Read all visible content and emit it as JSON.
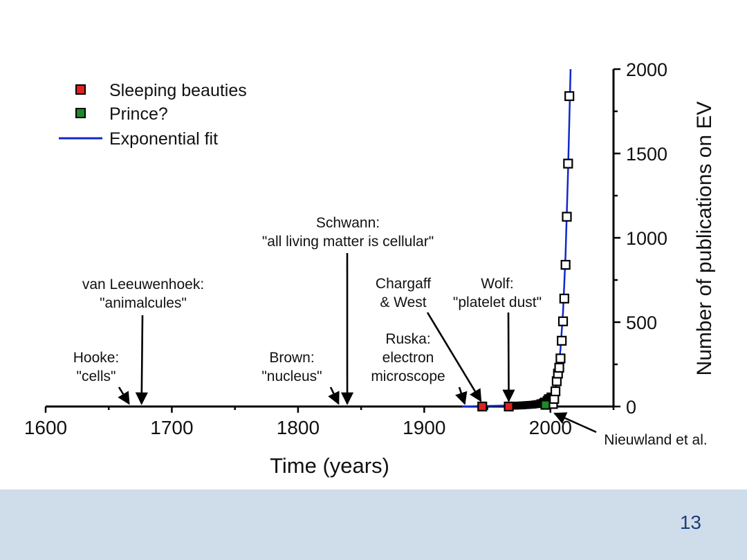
{
  "chart_data": {
    "type": "scatter",
    "xlabel": "Time (years)",
    "ylabel": "Number of publications on EV",
    "xlim": [
      1600,
      2050
    ],
    "ylim": [
      0,
      2000
    ],
    "x_ticks": [
      1600,
      1700,
      1800,
      1900,
      2000
    ],
    "y_ticks": [
      0,
      500,
      1000,
      1500,
      2000
    ],
    "legend": {
      "placement": "top-left",
      "items": [
        {
          "label": "Sleeping beauties",
          "marker": "square",
          "color": "#e02020"
        },
        {
          "label": "Prince?",
          "marker": "square",
          "color": "#1a8a2a"
        },
        {
          "label": "Exponential fit",
          "marker": "line",
          "color": "#1028c8"
        }
      ]
    },
    "series": [
      {
        "name": "Sleeping beauties",
        "color": "#e02020",
        "points": [
          {
            "x": 1946,
            "y": 0
          },
          {
            "x": 1967,
            "y": 0
          }
        ]
      },
      {
        "name": "Prince?",
        "color": "#1a8a2a",
        "points": [
          {
            "x": 1996,
            "y": 10
          }
        ]
      },
      {
        "name": "Publications",
        "color": "#000000",
        "points": [
          {
            "x": 1970,
            "y": 5
          },
          {
            "x": 1972,
            "y": 5
          },
          {
            "x": 1974,
            "y": 6
          },
          {
            "x": 1976,
            "y": 6
          },
          {
            "x": 1978,
            "y": 7
          },
          {
            "x": 1980,
            "y": 8
          },
          {
            "x": 1982,
            "y": 9
          },
          {
            "x": 1984,
            "y": 10
          },
          {
            "x": 1986,
            "y": 11
          },
          {
            "x": 1988,
            "y": 13
          },
          {
            "x": 1990,
            "y": 15
          },
          {
            "x": 1992,
            "y": 20
          },
          {
            "x": 1994,
            "y": 25
          },
          {
            "x": 1995,
            "y": 30
          },
          {
            "x": 1997,
            "y": 40
          },
          {
            "x": 1998,
            "y": 50
          },
          {
            "x": 2000,
            "y": 60
          },
          {
            "x": 2002,
            "y": 15
          },
          {
            "x": 2003,
            "y": 45
          },
          {
            "x": 2004,
            "y": 90
          },
          {
            "x": 2005,
            "y": 150
          },
          {
            "x": 2006,
            "y": 195
          },
          {
            "x": 2007,
            "y": 230
          },
          {
            "x": 2008,
            "y": 285
          },
          {
            "x": 2009,
            "y": 390
          },
          {
            "x": 2010,
            "y": 505
          },
          {
            "x": 2011,
            "y": 640
          },
          {
            "x": 2012,
            "y": 840
          },
          {
            "x": 2013,
            "y": 1125
          },
          {
            "x": 2014,
            "y": 1440
          },
          {
            "x": 2015,
            "y": 1840
          }
        ]
      }
    ],
    "fit": {
      "name": "Exponential fit",
      "color": "#1028c8",
      "x_start": 1930,
      "x_end": 2016,
      "points": [
        {
          "x": 1930,
          "y": 0
        },
        {
          "x": 1990,
          "y": 10
        },
        {
          "x": 2000,
          "y": 45
        },
        {
          "x": 2004,
          "y": 110
        },
        {
          "x": 2006,
          "y": 200
        },
        {
          "x": 2008,
          "y": 340
        },
        {
          "x": 2010,
          "y": 560
        },
        {
          "x": 2012,
          "y": 900
        },
        {
          "x": 2014,
          "y": 1400
        },
        {
          "x": 2015,
          "y": 1700
        },
        {
          "x": 2016,
          "y": 2000
        }
      ]
    },
    "annotations": [
      {
        "lines": [
          "Hooke:",
          "\"cells\""
        ],
        "year": 1665
      },
      {
        "lines": [
          "van Leeuwenhoek:",
          "\"animalcules\""
        ],
        "year": 1676
      },
      {
        "lines": [
          "Brown:",
          "\"nucleus\""
        ],
        "year": 1831
      },
      {
        "lines": [
          "Schwann:",
          "\"all living matter is cellular\""
        ],
        "year": 1839
      },
      {
        "lines": [
          "Ruska:",
          "electron",
          "microscope"
        ],
        "year": 1931
      },
      {
        "lines": [
          "Chargaff",
          "& West"
        ],
        "year": 1946
      },
      {
        "lines": [
          "Wolf:",
          "\"platelet dust\""
        ],
        "year": 1967
      },
      {
        "lines": [
          "Nieuwland et al."
        ],
        "year": 2000
      }
    ]
  },
  "slide": {
    "page_number": "13",
    "footer_color": "#cfdcea"
  }
}
